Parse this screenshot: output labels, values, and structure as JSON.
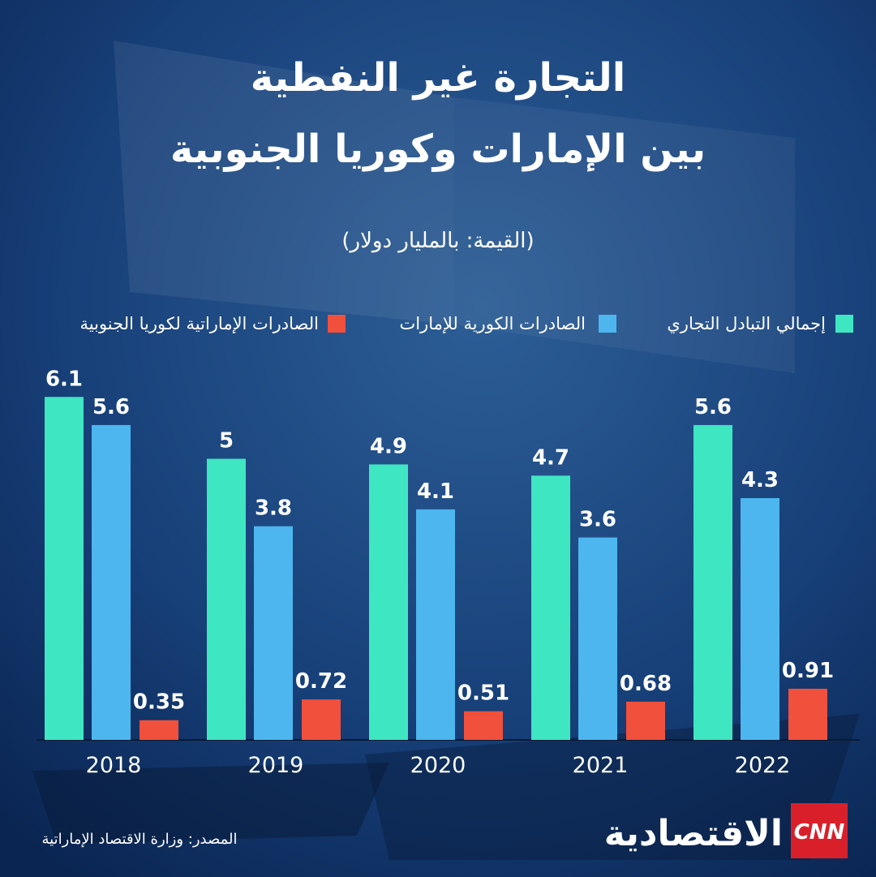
{
  "chart_data": {
    "type": "bar",
    "title": [
      "التجارة غير النفطية",
      "بين الإمارات وكوريا الجنوبية"
    ],
    "subtitle": "(القيمة: بالمليار دولار)",
    "categories": [
      "2018",
      "2019",
      "2020",
      "2021",
      "2022"
    ],
    "series": [
      {
        "name": "إجمالي التبادل التجاري",
        "color": "#3fe6c2",
        "values": [
          6.1,
          5,
          4.9,
          4.7,
          5.6
        ]
      },
      {
        "name": "الصادرات الكورية للإمارات",
        "color": "#4db6ef",
        "values": [
          5.6,
          3.8,
          4.1,
          3.6,
          4.3
        ]
      },
      {
        "name": "الصادرات الإماراتية لكوريا الجنوبية",
        "color": "#f0503c",
        "values": [
          0.35,
          0.72,
          0.51,
          0.68,
          0.91
        ]
      }
    ],
    "legend": "top"
  },
  "footer": {
    "source": "المصدر: وزارة الاقتصاد الإماراتية",
    "logo": "CNN",
    "brand": "الاقتصادية"
  }
}
